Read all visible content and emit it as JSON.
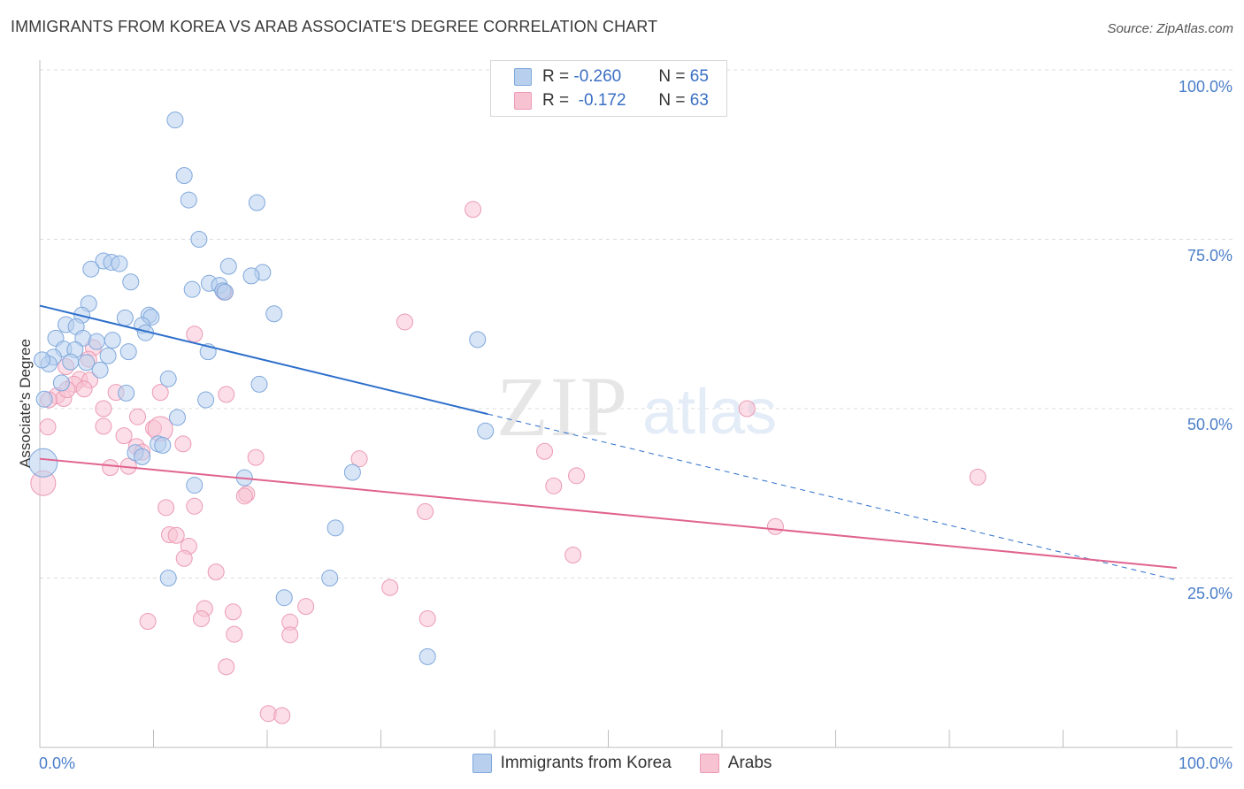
{
  "header": {
    "title": "IMMIGRANTS FROM KOREA VS ARAB ASSOCIATE'S DEGREE CORRELATION CHART",
    "source": "Source: ZipAtlas.com"
  },
  "watermark": {
    "zip": "ZIP",
    "atlas": "atlas"
  },
  "legend": {
    "rows": [
      {
        "r_label": "R = ",
        "r_value": "-0.260",
        "n_label": "N = ",
        "n_value": "65"
      },
      {
        "r_label": "R = ",
        "r_value": " -0.172",
        "n_label": "N = ",
        "n_value": "63"
      }
    ]
  },
  "bottom_legend": {
    "korea": "Immigrants from Korea",
    "arabs": "Arabs"
  },
  "axis": {
    "ylabel": "Associate's Degree",
    "y_ticks": [
      "100.0%",
      "75.0%",
      "50.0%",
      "25.0%"
    ],
    "x_left": "0.0%",
    "x_right": "100.0%"
  },
  "colors": {
    "korea_fill": "#b8d0ee",
    "korea_stroke": "#7fa8dc",
    "korea_line": "#2d6fcb",
    "arab_fill": "#f7c3d3",
    "arab_stroke": "#ec9ab5",
    "arab_line": "#e0638f",
    "grid": "#dcdcdc"
  },
  "chart_data": {
    "type": "scatter",
    "xlabel": "",
    "ylabel": "Associate's Degree",
    "xlim": [
      0,
      100
    ],
    "ylim": [
      0,
      100
    ],
    "grid": true,
    "legend_position": "top-center",
    "series": [
      {
        "name": "Immigrants from Korea",
        "r": -0.26,
        "n": 65,
        "trend": {
          "x0": 0,
          "y0": 65.2,
          "x1": 39.4,
          "y1": 49.2,
          "dashed_to": [
            100,
            24.7
          ]
        },
        "points": [
          [
            11.9,
            92.6
          ],
          [
            12.7,
            84.4
          ],
          [
            13.1,
            80.8
          ],
          [
            19.1,
            80.4
          ],
          [
            14.0,
            75.0
          ],
          [
            5.6,
            71.8
          ],
          [
            6.3,
            71.6
          ],
          [
            7.0,
            71.4
          ],
          [
            16.6,
            71.0
          ],
          [
            19.6,
            70.1
          ],
          [
            4.5,
            70.6
          ],
          [
            18.6,
            69.6
          ],
          [
            8.0,
            68.7
          ],
          [
            14.9,
            68.5
          ],
          [
            15.8,
            68.2
          ],
          [
            13.4,
            67.6
          ],
          [
            16.1,
            67.4
          ],
          [
            16.3,
            67.2
          ],
          [
            4.3,
            65.5
          ],
          [
            20.6,
            64.0
          ],
          [
            3.7,
            63.8
          ],
          [
            9.6,
            63.8
          ],
          [
            9.8,
            63.5
          ],
          [
            7.5,
            63.4
          ],
          [
            2.3,
            62.4
          ],
          [
            3.2,
            62.1
          ],
          [
            9.0,
            62.3
          ],
          [
            9.3,
            61.2
          ],
          [
            38.5,
            60.2
          ],
          [
            1.4,
            60.4
          ],
          [
            3.8,
            60.4
          ],
          [
            5.0,
            59.9
          ],
          [
            6.4,
            60.1
          ],
          [
            2.1,
            58.8
          ],
          [
            3.1,
            58.7
          ],
          [
            7.8,
            58.4
          ],
          [
            14.8,
            58.4
          ],
          [
            1.2,
            57.6
          ],
          [
            6.0,
            57.8
          ],
          [
            0.8,
            56.6
          ],
          [
            2.7,
            56.9
          ],
          [
            4.1,
            56.8
          ],
          [
            5.3,
            55.7
          ],
          [
            11.3,
            54.4
          ],
          [
            1.9,
            53.8
          ],
          [
            19.3,
            53.6
          ],
          [
            7.6,
            52.3
          ],
          [
            0.4,
            51.4
          ],
          [
            14.6,
            51.3
          ],
          [
            12.1,
            48.7
          ],
          [
            39.2,
            46.7
          ],
          [
            10.4,
            44.8
          ],
          [
            10.8,
            44.6
          ],
          [
            8.4,
            43.5
          ],
          [
            9.0,
            42.9
          ],
          [
            27.5,
            40.6
          ],
          [
            18.0,
            39.8
          ],
          [
            13.6,
            38.7
          ],
          [
            26.0,
            32.4
          ],
          [
            11.3,
            25.0
          ],
          [
            25.5,
            25.0
          ],
          [
            21.5,
            22.1
          ],
          [
            34.1,
            13.4
          ],
          [
            0.3,
            42.0
          ],
          [
            0.2,
            57.2
          ]
        ]
      },
      {
        "name": "Arabs",
        "r": -0.172,
        "n": 63,
        "trend": {
          "x0": 0,
          "y0": 42.6,
          "x1": 100,
          "y1": 26.5
        },
        "points": [
          [
            38.1,
            79.4
          ],
          [
            16.2,
            67.2
          ],
          [
            32.1,
            62.8
          ],
          [
            13.6,
            61.0
          ],
          [
            4.7,
            59.0
          ],
          [
            4.3,
            57.3
          ],
          [
            2.3,
            56.2
          ],
          [
            3.5,
            54.3
          ],
          [
            4.4,
            54.2
          ],
          [
            3.0,
            53.6
          ],
          [
            3.9,
            52.9
          ],
          [
            1.5,
            51.9
          ],
          [
            2.1,
            51.5
          ],
          [
            0.8,
            51.3
          ],
          [
            6.7,
            52.4
          ],
          [
            10.6,
            52.4
          ],
          [
            16.4,
            52.1
          ],
          [
            5.6,
            50.0
          ],
          [
            62.2,
            50.0
          ],
          [
            8.6,
            48.8
          ],
          [
            5.6,
            47.4
          ],
          [
            0.7,
            47.3
          ],
          [
            10.0,
            47.1
          ],
          [
            10.6,
            47.0
          ],
          [
            7.4,
            46.0
          ],
          [
            12.6,
            44.8
          ],
          [
            8.5,
            44.4
          ],
          [
            9.0,
            43.6
          ],
          [
            44.4,
            43.7
          ],
          [
            19.0,
            42.8
          ],
          [
            28.1,
            42.6
          ],
          [
            6.2,
            41.3
          ],
          [
            7.8,
            41.5
          ],
          [
            47.2,
            40.1
          ],
          [
            82.5,
            39.9
          ],
          [
            0.3,
            39.0
          ],
          [
            45.2,
            38.6
          ],
          [
            18.2,
            37.4
          ],
          [
            18.0,
            37.1
          ],
          [
            11.1,
            35.4
          ],
          [
            13.6,
            35.6
          ],
          [
            33.9,
            34.8
          ],
          [
            64.7,
            32.6
          ],
          [
            11.4,
            31.4
          ],
          [
            12.0,
            31.3
          ],
          [
            13.1,
            29.7
          ],
          [
            12.7,
            27.9
          ],
          [
            46.9,
            28.4
          ],
          [
            15.5,
            25.9
          ],
          [
            30.8,
            23.6
          ],
          [
            14.5,
            20.5
          ],
          [
            23.4,
            20.8
          ],
          [
            17.0,
            20.0
          ],
          [
            34.1,
            19.0
          ],
          [
            14.2,
            19.0
          ],
          [
            22.0,
            18.5
          ],
          [
            9.5,
            18.6
          ],
          [
            17.1,
            16.7
          ],
          [
            22.0,
            16.6
          ],
          [
            16.4,
            11.9
          ],
          [
            20.1,
            5.0
          ],
          [
            21.3,
            4.7
          ],
          [
            2.4,
            52.8
          ]
        ]
      }
    ]
  }
}
